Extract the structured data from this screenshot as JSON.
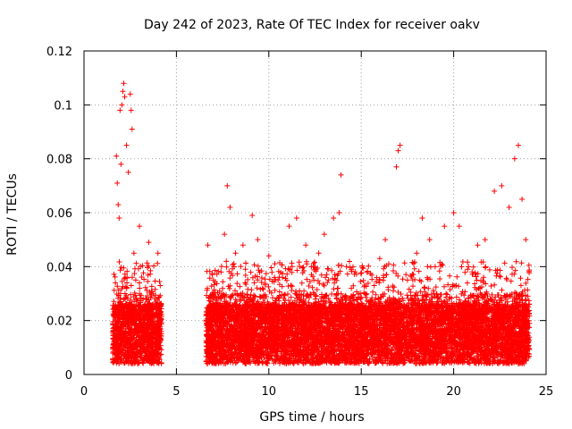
{
  "chart_data": {
    "type": "scatter",
    "title": "Day 242 of 2023, Rate Of TEC Index for receiver oakv",
    "xlabel": "GPS time / hours",
    "ylabel": "ROTI / TECUs",
    "xlim": [
      0,
      25
    ],
    "ylim": [
      0,
      0.12
    ],
    "x_ticks": [
      0,
      5,
      10,
      15,
      20,
      25
    ],
    "x_tick_labels": [
      "0",
      "5",
      "10",
      "15",
      "20",
      "25"
    ],
    "y_ticks": [
      0,
      0.02,
      0.04,
      0.06,
      0.08,
      0.1,
      0.12
    ],
    "y_tick_labels": [
      "0",
      "0.02",
      "0.04",
      "0.06",
      "0.08",
      "0.1",
      "0.12"
    ],
    "grid": true,
    "marker": "+",
    "series": [
      {
        "name": "ROTI",
        "color": "#ff0000",
        "points": [
          [
            1.6,
            0.012
          ],
          [
            1.7,
            0.034
          ],
          [
            1.75,
            0.081
          ],
          [
            1.8,
            0.071
          ],
          [
            1.85,
            0.063
          ],
          [
            1.9,
            0.058
          ],
          [
            1.95,
            0.098
          ],
          [
            2.0,
            0.078
          ],
          [
            2.05,
            0.1
          ],
          [
            2.1,
            0.105
          ],
          [
            2.15,
            0.108
          ],
          [
            2.2,
            0.103
          ],
          [
            2.3,
            0.085
          ],
          [
            2.4,
            0.075
          ],
          [
            2.5,
            0.104
          ],
          [
            2.55,
            0.098
          ],
          [
            2.6,
            0.091
          ],
          [
            2.7,
            0.045
          ],
          [
            2.8,
            0.035
          ],
          [
            3.0,
            0.055
          ],
          [
            3.2,
            0.028
          ],
          [
            3.5,
            0.049
          ],
          [
            3.8,
            0.018
          ],
          [
            4.0,
            0.045
          ],
          [
            4.1,
            0.012
          ],
          [
            6.7,
            0.048
          ],
          [
            7.0,
            0.035
          ],
          [
            7.3,
            0.02
          ],
          [
            7.6,
            0.052
          ],
          [
            7.75,
            0.07
          ],
          [
            7.9,
            0.062
          ],
          [
            8.2,
            0.045
          ],
          [
            8.6,
            0.048
          ],
          [
            9.1,
            0.059
          ],
          [
            9.4,
            0.05
          ],
          [
            10.0,
            0.044
          ],
          [
            10.5,
            0.035
          ],
          [
            11.1,
            0.055
          ],
          [
            11.5,
            0.058
          ],
          [
            12.0,
            0.048
          ],
          [
            12.3,
            0.04
          ],
          [
            12.7,
            0.045
          ],
          [
            13.0,
            0.052
          ],
          [
            13.5,
            0.058
          ],
          [
            13.8,
            0.06
          ],
          [
            13.9,
            0.074
          ],
          [
            14.2,
            0.04
          ],
          [
            14.6,
            0.028
          ],
          [
            15.2,
            0.03
          ],
          [
            15.7,
            0.033
          ],
          [
            16.0,
            0.043
          ],
          [
            16.3,
            0.05
          ],
          [
            16.9,
            0.077
          ],
          [
            17.0,
            0.083
          ],
          [
            17.1,
            0.085
          ],
          [
            17.5,
            0.035
          ],
          [
            18.0,
            0.045
          ],
          [
            18.3,
            0.058
          ],
          [
            18.7,
            0.05
          ],
          [
            19.0,
            0.04
          ],
          [
            19.5,
            0.055
          ],
          [
            20.0,
            0.06
          ],
          [
            20.3,
            0.055
          ],
          [
            20.8,
            0.04
          ],
          [
            21.3,
            0.048
          ],
          [
            21.7,
            0.05
          ],
          [
            22.2,
            0.068
          ],
          [
            22.6,
            0.07
          ],
          [
            23.0,
            0.062
          ],
          [
            23.3,
            0.08
          ],
          [
            23.5,
            0.085
          ],
          [
            23.7,
            0.065
          ],
          [
            23.9,
            0.05
          ],
          [
            24.0,
            0.02
          ]
        ]
      }
    ]
  }
}
